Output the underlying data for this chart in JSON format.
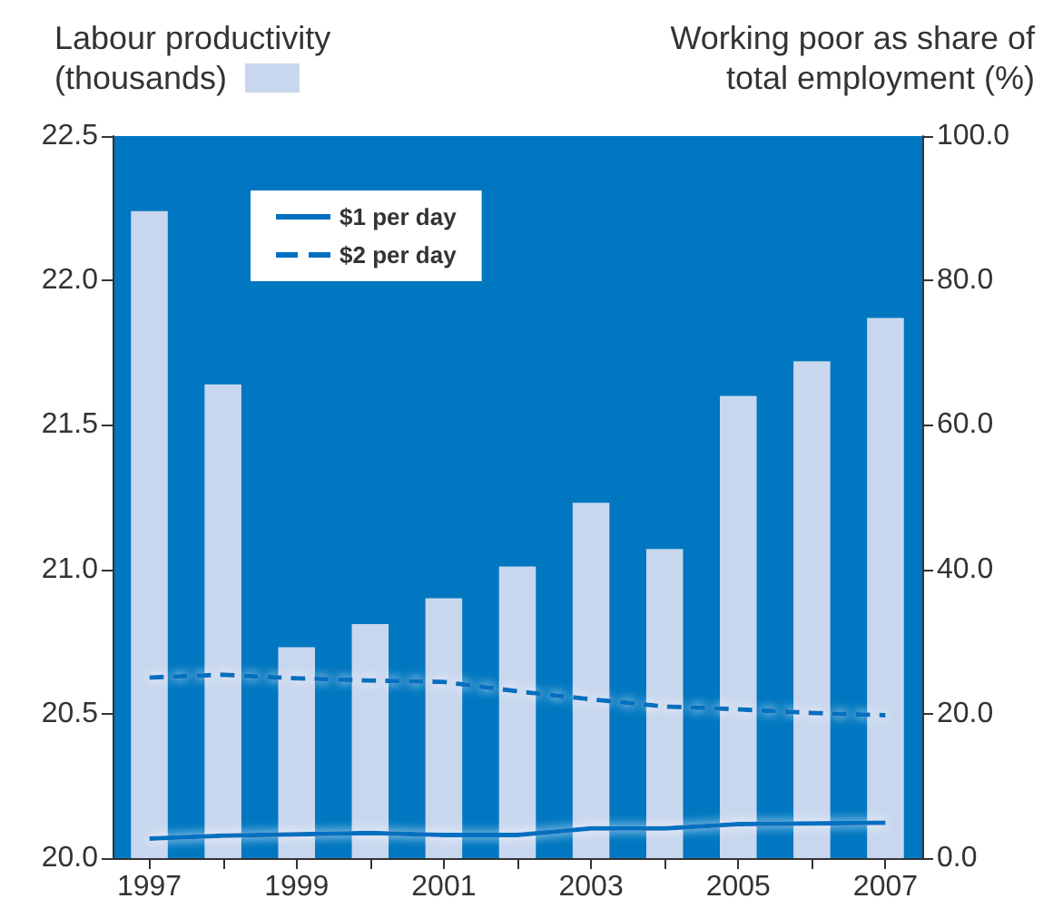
{
  "chart_data": {
    "type": "bar",
    "ylabel": "Labour productivity (thousands)",
    "y2label": "Working poor as share of total employment (%)",
    "categories": [
      "1997",
      null,
      "1999",
      null,
      "2001",
      null,
      "2003",
      null,
      "2005",
      null,
      "2007"
    ],
    "series": [
      {
        "color": "#c8d7ee",
        "values": [
          22.24,
          21.64,
          20.73,
          20.81,
          20.9,
          21.01,
          21.23,
          21.07,
          21.6,
          21.72,
          21.87
        ]
      },
      {
        "type": "line",
        "name": "$1 per day",
        "axis": "y2",
        "color": "#0070c0",
        "line_style": "solid",
        "values": [
          2.7,
          3.1,
          3.3,
          3.5,
          3.2,
          3.2,
          4.1,
          4.1,
          4.7,
          4.8,
          4.9
        ]
      },
      {
        "type": "line",
        "name": "$2 per day",
        "axis": "y2",
        "color": "#0070c0",
        "line_style": "dashed",
        "values": [
          25.0,
          25.4,
          24.9,
          24.6,
          24.4,
          23.1,
          22.0,
          21.0,
          20.6,
          20.1,
          19.8
        ]
      }
    ],
    "ylim": [
      20,
      22.5
    ],
    "yticks": [
      {
        "value": 20,
        "label": "20.0"
      },
      20.5,
      {
        "value": 21,
        "label": "21.0"
      },
      {
        "value": 21.5,
        "label": "21.5"
      },
      {
        "value": 22,
        "label": "22.0"
      },
      22.5
    ],
    "y2lim": [
      0,
      100
    ],
    "y2ticks": [
      {
        "value": 0,
        "label": "0.0"
      },
      {
        "value": 20,
        "label": "20.0"
      },
      {
        "value": 40,
        "label": "40.0"
      },
      {
        "value": 60,
        "label": "60.0"
      },
      {
        "value": 80,
        "label": "80.0"
      },
      {
        "value": 100,
        "label": "100.0"
      }
    ],
    "grid": false,
    "legend": "top left",
    "marker": "none"
  }
}
